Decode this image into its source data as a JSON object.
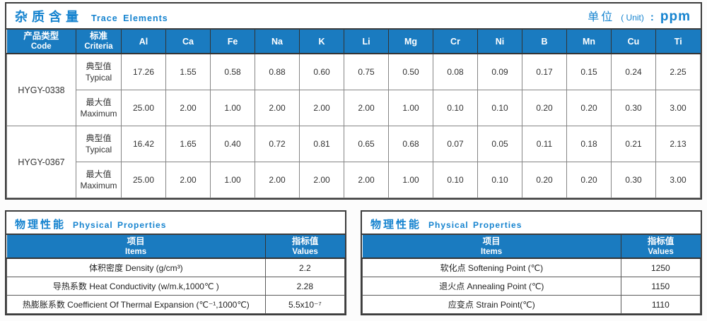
{
  "trace": {
    "title_zh": "杂质含量",
    "title_en": "Trace Elements",
    "unit_zh": "单位",
    "unit_paren": "( Unit)",
    "unit_colon": ":",
    "unit_value": "ppm",
    "headers": {
      "code_zh": "产品类型",
      "code_en": "Code",
      "criteria_zh": "标准",
      "criteria_en": "Criteria"
    },
    "elements": [
      "Al",
      "Ca",
      "Fe",
      "Na",
      "K",
      "Li",
      "Mg",
      "Cr",
      "Ni",
      "B",
      "Mn",
      "Cu",
      "Ti"
    ],
    "groups": [
      {
        "code": "HYGY-0338",
        "rows": [
          {
            "label_zh": "典型值",
            "label_en": "Typical",
            "values": [
              "17.26",
              "1.55",
              "0.58",
              "0.88",
              "0.60",
              "0.75",
              "0.50",
              "0.08",
              "0.09",
              "0.17",
              "0.15",
              "0.24",
              "2.25"
            ]
          },
          {
            "label_zh": "最大值",
            "label_en": "Maximum",
            "values": [
              "25.00",
              "2.00",
              "1.00",
              "2.00",
              "2.00",
              "2.00",
              "1.00",
              "0.10",
              "0.10",
              "0.20",
              "0.20",
              "0.30",
              "3.00"
            ]
          }
        ]
      },
      {
        "code": "HYGY-0367",
        "rows": [
          {
            "label_zh": "典型值",
            "label_en": "Typical",
            "values": [
              "16.42",
              "1.65",
              "0.40",
              "0.72",
              "0.81",
              "0.65",
              "0.68",
              "0.07",
              "0.05",
              "0.11",
              "0.18",
              "0.21",
              "2.13"
            ]
          },
          {
            "label_zh": "最大值",
            "label_en": "Maximum",
            "values": [
              "25.00",
              "2.00",
              "1.00",
              "2.00",
              "2.00",
              "2.00",
              "1.00",
              "0.10",
              "0.10",
              "0.20",
              "0.20",
              "0.30",
              "3.00"
            ]
          }
        ]
      }
    ]
  },
  "physical_left": {
    "title_zh": "物理性能",
    "title_en": "Physical Properties",
    "col_items_zh": "项目",
    "col_items_en": "Items",
    "col_values_zh": "指标值",
    "col_values_en": "Values",
    "rows": [
      {
        "item": "体积密度 Density (g/cm³)",
        "value": "2.2"
      },
      {
        "item": "导热系数 Heat Conductivity (w/m.k,1000℃ )",
        "value": "2.28"
      },
      {
        "item": "热膨胀系数 Coefficient Of Thermal Expansion (℃⁻¹,1000℃)",
        "value": "5.5x10⁻⁷"
      }
    ]
  },
  "physical_right": {
    "title_zh": "物理性能",
    "title_en": "Physical Properties",
    "col_items_zh": "项目",
    "col_items_en": "Items",
    "col_values_zh": "指标值",
    "col_values_en": "Values",
    "rows": [
      {
        "item": "软化点 Softening Point (℃)",
        "value": "1250"
      },
      {
        "item": "退火点 Annealing Point (℃)",
        "value": "1150"
      },
      {
        "item": "应变点 Strain Point(℃)",
        "value": "1110"
      }
    ]
  },
  "colors": {
    "header_blue": "#1A7BC0",
    "title_blue": "#1583CF",
    "border_dark": "#3C3C3C"
  }
}
